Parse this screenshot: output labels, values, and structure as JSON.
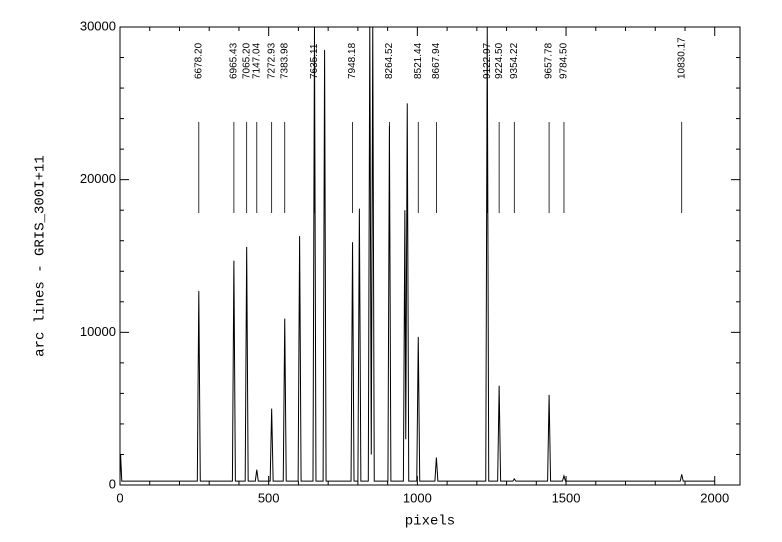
{
  "chart_data": {
    "type": "line",
    "xlabel": "pixels",
    "ylabel": "arc lines  -  GRIS_300I+11",
    "x": [
      0,
      2,
      6,
      260,
      265,
      270,
      378,
      383,
      388,
      421,
      426,
      431,
      455,
      460,
      465,
      505,
      510,
      515,
      549,
      554,
      559,
      599,
      604,
      609,
      649,
      654,
      659,
      683,
      688,
      693,
      777,
      782,
      787,
      800,
      805,
      810,
      835,
      840,
      845,
      850,
      855,
      901,
      906,
      911,
      953,
      958,
      961,
      966,
      971,
      998,
      1003,
      1008,
      1059,
      1064,
      1069,
      1230,
      1235,
      1240,
      1270,
      1275,
      1280,
      1321,
      1326,
      1331,
      1438,
      1443,
      1448,
      1488,
      1493,
      1498,
      1884,
      1889,
      1894,
      2000
    ],
    "series": [
      {
        "color": "#000000",
        "values": [
          250,
          2000,
          250,
          250,
          12700,
          250,
          250,
          14700,
          250,
          250,
          15600,
          250,
          250,
          1000,
          250,
          250,
          5000,
          250,
          250,
          10900,
          250,
          250,
          16300,
          250,
          250,
          30000,
          250,
          250,
          28500,
          250,
          250,
          15900,
          250,
          250,
          18100,
          250,
          250,
          30000,
          2000,
          30000,
          250,
          250,
          23500,
          250,
          250,
          18000,
          3000,
          25000,
          250,
          250,
          9700,
          250,
          250,
          1800,
          250,
          250,
          30000,
          250,
          250,
          6500,
          250,
          250,
          400,
          250,
          250,
          5900,
          250,
          250,
          600,
          250,
          250,
          700,
          250,
          250
        ]
      }
    ],
    "annotations": [
      {
        "label": "6678.20",
        "x": 265
      },
      {
        "label": "6965.43",
        "x": 383
      },
      {
        "label": "7065.20",
        "x": 426
      },
      {
        "label": "7147.04",
        "x": 460
      },
      {
        "label": "7272.93",
        "x": 510
      },
      {
        "label": "7383.98",
        "x": 554
      },
      {
        "label": "7635.11",
        "x": 654
      },
      {
        "label": "7948.18",
        "x": 782
      },
      {
        "label": "8264.52",
        "x": 906
      },
      {
        "label": "8521.44",
        "x": 1003
      },
      {
        "label": "8667.94",
        "x": 1064
      },
      {
        "label": "9122.97",
        "x": 1235
      },
      {
        "label": "9224.50",
        "x": 1275
      },
      {
        "label": "9354.22",
        "x": 1326
      },
      {
        "label": "9657.78",
        "x": 1443
      },
      {
        "label": "9784.50",
        "x": 1493
      },
      {
        "label": "10830.17",
        "x": 1889
      }
    ],
    "xlim": [
      0,
      2085
    ],
    "xticks": [
      0,
      500,
      1000,
      1500,
      2000
    ],
    "ylim": [
      0,
      30000
    ],
    "yticks": [
      0,
      10000,
      20000,
      30000
    ]
  }
}
